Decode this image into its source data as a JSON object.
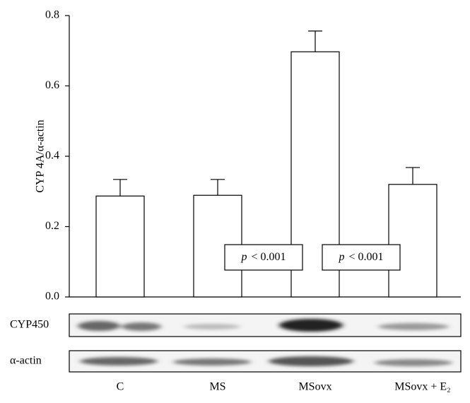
{
  "chart_data": {
    "type": "bar",
    "y_label": "CYP 4A/α-actin",
    "categories": [
      "C",
      "MS",
      "MSovx",
      "MSovx + E₂"
    ],
    "values": [
      0.287,
      0.289,
      0.697,
      0.32
    ],
    "errors": [
      0.047,
      0.045,
      0.059,
      0.048
    ],
    "color": "#ffffff",
    "ylim": [
      0,
      0.8
    ],
    "yticks": [
      {
        "value": 0,
        "label": "0.0"
      },
      {
        "value": 0.2,
        "label": "0.2"
      },
      {
        "value": 0.4,
        "label": "0.4"
      },
      {
        "value": 0.6,
        "label": "0.6"
      },
      {
        "value": 0.8,
        "label": "0.8"
      }
    ],
    "annotations": [
      {
        "variable": "p",
        "text": "< 0.001"
      },
      {
        "variable": "p",
        "text": "< 0.001"
      }
    ],
    "blot_labels": [
      "CYP450",
      "α-actin"
    ]
  }
}
